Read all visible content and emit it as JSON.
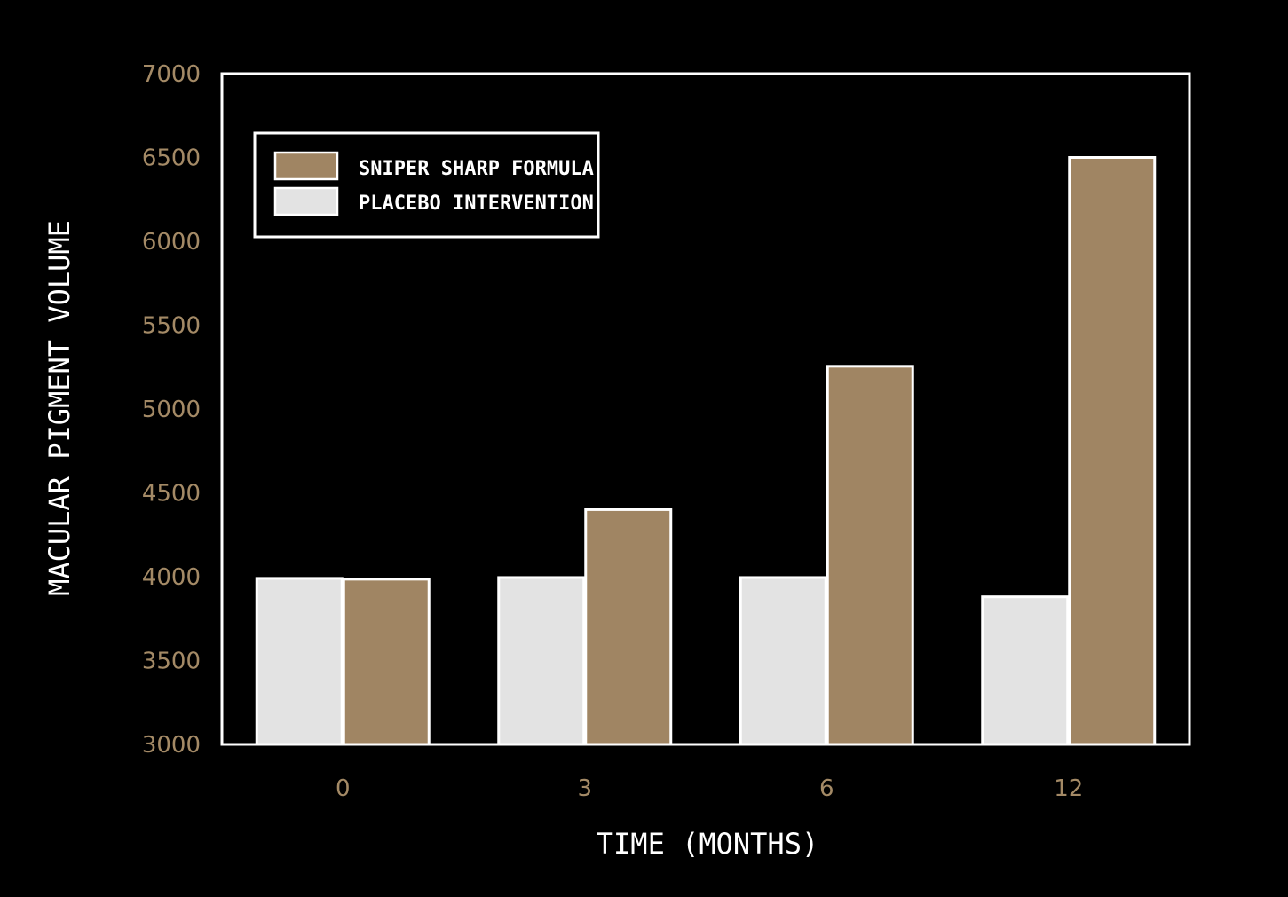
{
  "chart_data": {
    "type": "bar",
    "title": "",
    "xlabel": "TIME (MONTHS)",
    "ylabel": "MACULAR PIGMENT VOLUME",
    "categories": [
      "0",
      "3",
      "6",
      "12"
    ],
    "ylim": [
      3000,
      7000
    ],
    "yticks": [
      "3000",
      "3500",
      "4000",
      "4500",
      "5000",
      "5500",
      "6000",
      "6500",
      "7000"
    ],
    "grid": false,
    "legend_position": "top-left",
    "series": [
      {
        "name": "PLACEBO INTERVENTION",
        "color": "#e3e3e3",
        "values": [
          3990,
          3995,
          3995,
          3880
        ]
      },
      {
        "name": "SNIPER SHARP FORMULA",
        "color": "#a08563",
        "values": [
          3985,
          4400,
          5255,
          6500
        ]
      }
    ],
    "legend_order": [
      1,
      0
    ],
    "colors": {
      "background": "#000000",
      "axis": "#ffffff",
      "tick_label": "#a48a66",
      "bar_outline": "#ffffff"
    }
  }
}
